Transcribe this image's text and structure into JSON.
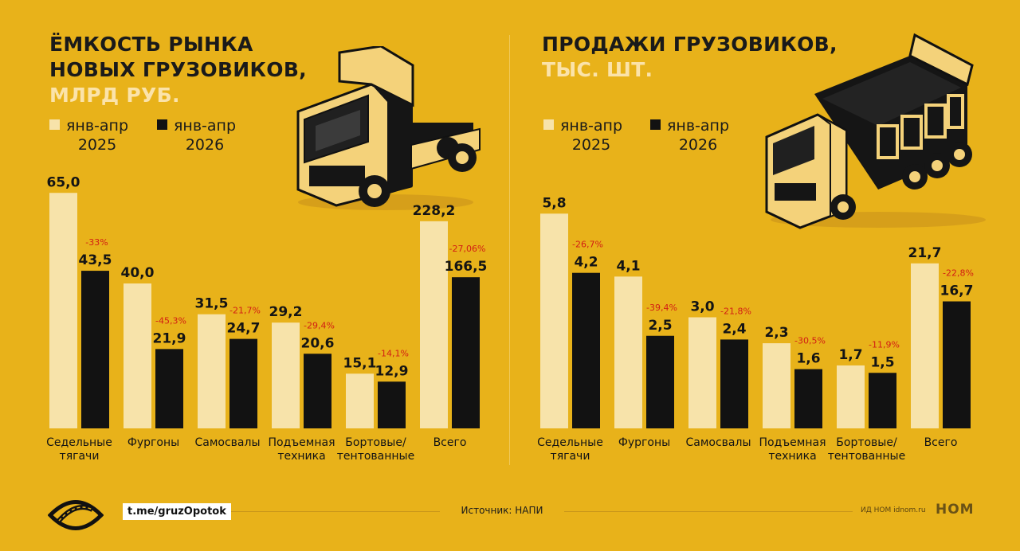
{
  "colors": {
    "background": "#E8B21A",
    "series_2025": "#F7E3AA",
    "series_2026": "#121212",
    "change": "#D21E14"
  },
  "chart_data": [
    {
      "type": "bar",
      "title": "ЁМКОСТЬ РЫНКА НОВЫХ ГРУЗОВИКОВ,",
      "unit": "МЛРД РУБ.",
      "categories": [
        [
          "Седельные",
          "тягачи"
        ],
        [
          "Фургоны"
        ],
        [
          "Самосвалы"
        ],
        [
          "Подъемная",
          "техника"
        ],
        [
          "Бортовые/",
          "тентованные"
        ],
        [
          "Всего"
        ]
      ],
      "series": [
        {
          "name": "янв-апр 2025",
          "legend": [
            "янв-апр",
            "2025"
          ],
          "values": [
            65.0,
            40.0,
            31.5,
            29.2,
            15.1,
            228.2
          ],
          "labels": [
            "65,0",
            "40,0",
            "31,5",
            "29,2",
            "15,1",
            "228,2"
          ]
        },
        {
          "name": "янв-апр 2026",
          "legend": [
            "янв-апр",
            "2026"
          ],
          "values": [
            43.5,
            21.9,
            24.7,
            20.6,
            12.9,
            166.5
          ],
          "labels": [
            "43,5",
            "21,9",
            "24,7",
            "20,6",
            "12,9",
            "166,5"
          ]
        }
      ],
      "changes": [
        "-33%",
        "-45,3%",
        "-21,7%",
        "-29,4%",
        "-14,1%",
        "-27,06%"
      ],
      "grid": false,
      "legend_position": "top-left"
    },
    {
      "type": "bar",
      "title": "ПРОДАЖИ ГРУЗОВИКОВ,",
      "unit": "ТЫС. ШТ.",
      "categories": [
        [
          "Седельные",
          "тягачи"
        ],
        [
          "Фургоны"
        ],
        [
          "Самосвалы"
        ],
        [
          "Подъемная",
          "техника"
        ],
        [
          "Бортовые/",
          "тентованные"
        ],
        [
          "Всего"
        ]
      ],
      "series": [
        {
          "name": "янв-апр 2025",
          "legend": [
            "янв-апр",
            "2025"
          ],
          "values": [
            5.8,
            4.1,
            3.0,
            2.3,
            1.7,
            21.7
          ],
          "labels": [
            "5,8",
            "4,1",
            "3,0",
            "2,3",
            "1,7",
            "21,7"
          ]
        },
        {
          "name": "янв-апр 2026",
          "legend": [
            "янв-апр",
            "2026"
          ],
          "values": [
            4.2,
            2.5,
            2.4,
            1.6,
            1.5,
            16.7
          ],
          "labels": [
            "4,2",
            "2,5",
            "2,4",
            "1,6",
            "1,5",
            "16,7"
          ]
        }
      ],
      "changes": [
        "-26,7%",
        "-39,4%",
        "-21,8%",
        "-30,5%",
        "-11,9%",
        "-22,8%"
      ],
      "grid": false,
      "legend_position": "top-left"
    }
  ],
  "footer": {
    "telegram": "t.me/gruzOpotok",
    "source": "Источник: НАПИ",
    "publisher": "ИД НОМ idnom.ru",
    "publisher_logo": "НОМ"
  },
  "icons": {
    "logo": "eye-road-logo-icon",
    "left_truck": "tractor-truck-icon",
    "right_truck": "dump-truck-icon"
  }
}
